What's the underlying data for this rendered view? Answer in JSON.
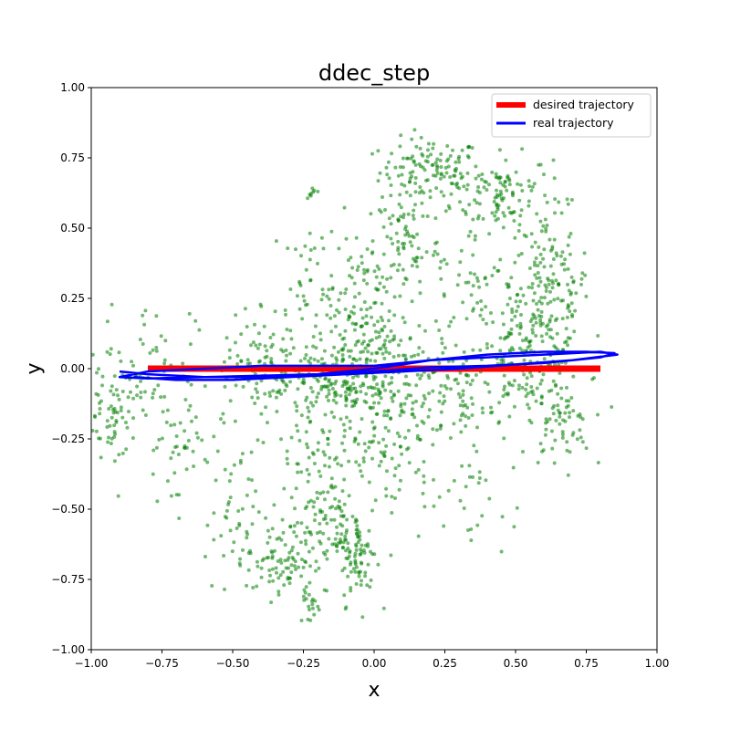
{
  "chart_data": {
    "type": "scatter",
    "title": "ddec_step",
    "xlabel": "x",
    "ylabel": "y",
    "xlim": [
      -1.0,
      1.0
    ],
    "ylim": [
      -1.0,
      1.0
    ],
    "x_ticks": [
      "−1.00",
      "−0.75",
      "−0.50",
      "−0.25",
      "0.00",
      "0.25",
      "0.50",
      "0.75",
      "1.00"
    ],
    "y_ticks": [
      "−1.00",
      "−0.75",
      "−0.50",
      "−0.25",
      "0.00",
      "0.25",
      "0.50",
      "0.75",
      "1.00"
    ],
    "grid": false,
    "legend_position": "top-right",
    "series": [
      {
        "name": "desired trajectory",
        "kind": "line",
        "color": "#ff0000",
        "x": [
          -0.8,
          0.8
        ],
        "y": [
          0.0,
          0.0
        ]
      },
      {
        "name": "real trajectory",
        "kind": "line",
        "color": "#0000ff",
        "x": [
          -0.9,
          -0.8,
          -0.6,
          -0.4,
          -0.2,
          0.0,
          0.2,
          0.4,
          0.6,
          0.75,
          0.85,
          0.8,
          0.6,
          0.4,
          0.2,
          0.0,
          -0.2,
          -0.4,
          -0.6,
          -0.8,
          -0.9,
          -0.8,
          -0.6,
          -0.4,
          -0.2,
          0.0,
          0.2,
          0.4,
          0.6,
          0.8,
          0.86,
          0.7,
          0.5,
          0.3,
          0.1,
          -0.1,
          -0.3,
          -0.5,
          -0.7,
          -0.85
        ],
        "y": [
          -0.01,
          -0.02,
          -0.03,
          -0.03,
          -0.02,
          0.0,
          0.03,
          0.05,
          0.06,
          0.06,
          0.055,
          0.04,
          0.02,
          0.01,
          0.005,
          -0.01,
          -0.02,
          -0.025,
          -0.03,
          -0.035,
          -0.03,
          -0.01,
          0.0,
          0.01,
          0.01,
          0.01,
          0.03,
          0.04,
          0.05,
          0.06,
          0.05,
          0.03,
          0.015,
          0.0,
          -0.01,
          -0.02,
          -0.03,
          -0.04,
          -0.04,
          -0.03
        ]
      },
      {
        "kind": "scatter",
        "color": "#008000",
        "clusters": [
          {
            "cx": 0.2,
            "cy": 0.7,
            "sx": 0.09,
            "sy": 0.06,
            "n": 130
          },
          {
            "cx": 0.45,
            "cy": 0.62,
            "sx": 0.09,
            "sy": 0.07,
            "n": 110
          },
          {
            "cx": 0.62,
            "cy": 0.3,
            "sx": 0.07,
            "sy": 0.13,
            "n": 140
          },
          {
            "cx": 0.55,
            "cy": 0.05,
            "sx": 0.1,
            "sy": 0.1,
            "n": 150
          },
          {
            "cx": 0.65,
            "cy": -0.2,
            "sx": 0.06,
            "sy": 0.08,
            "n": 60
          },
          {
            "cx": 0.12,
            "cy": 0.45,
            "sx": 0.06,
            "sy": 0.1,
            "n": 70
          },
          {
            "cx": 0.35,
            "cy": 0.3,
            "sx": 0.1,
            "sy": 0.1,
            "n": 60
          },
          {
            "cx": -0.05,
            "cy": 0.2,
            "sx": 0.06,
            "sy": 0.15,
            "n": 120
          },
          {
            "cx": -0.12,
            "cy": -0.05,
            "sx": 0.1,
            "sy": 0.08,
            "n": 160
          },
          {
            "cx": 0.1,
            "cy": -0.05,
            "sx": 0.12,
            "sy": 0.1,
            "n": 160
          },
          {
            "cx": 0.35,
            "cy": -0.1,
            "sx": 0.12,
            "sy": 0.12,
            "n": 90
          },
          {
            "cx": -0.35,
            "cy": -0.05,
            "sx": 0.12,
            "sy": 0.1,
            "n": 90
          },
          {
            "cx": -0.92,
            "cy": -0.15,
            "sx": 0.05,
            "sy": 0.08,
            "n": 70
          },
          {
            "cx": -0.8,
            "cy": 0.05,
            "sx": 0.08,
            "sy": 0.1,
            "n": 50
          },
          {
            "cx": -0.7,
            "cy": -0.3,
            "sx": 0.08,
            "sy": 0.1,
            "n": 50
          },
          {
            "cx": -0.5,
            "cy": -0.55,
            "sx": 0.05,
            "sy": 0.12,
            "n": 40
          },
          {
            "cx": -0.33,
            "cy": -0.68,
            "sx": 0.06,
            "sy": 0.07,
            "n": 90
          },
          {
            "cx": -0.15,
            "cy": -0.55,
            "sx": 0.05,
            "sy": 0.1,
            "n": 90
          },
          {
            "cx": -0.05,
            "cy": -0.68,
            "sx": 0.03,
            "sy": 0.08,
            "n": 70
          },
          {
            "cx": -0.23,
            "cy": -0.83,
            "sx": 0.02,
            "sy": 0.04,
            "n": 20
          },
          {
            "cx": -0.18,
            "cy": -0.3,
            "sx": 0.1,
            "sy": 0.12,
            "n": 70
          },
          {
            "cx": 0.05,
            "cy": -0.3,
            "sx": 0.08,
            "sy": 0.1,
            "n": 50
          },
          {
            "cx": -0.22,
            "cy": 0.63,
            "sx": 0.01,
            "sy": 0.01,
            "n": 8
          },
          {
            "cx": -0.45,
            "cy": 0.08,
            "sx": 0.08,
            "sy": 0.08,
            "n": 40
          },
          {
            "cx": -0.2,
            "cy": 0.3,
            "sx": 0.06,
            "sy": 0.1,
            "n": 40
          },
          {
            "cx": 0.3,
            "cy": -0.5,
            "sx": 0.12,
            "sy": 0.1,
            "n": 30
          }
        ]
      }
    ]
  }
}
